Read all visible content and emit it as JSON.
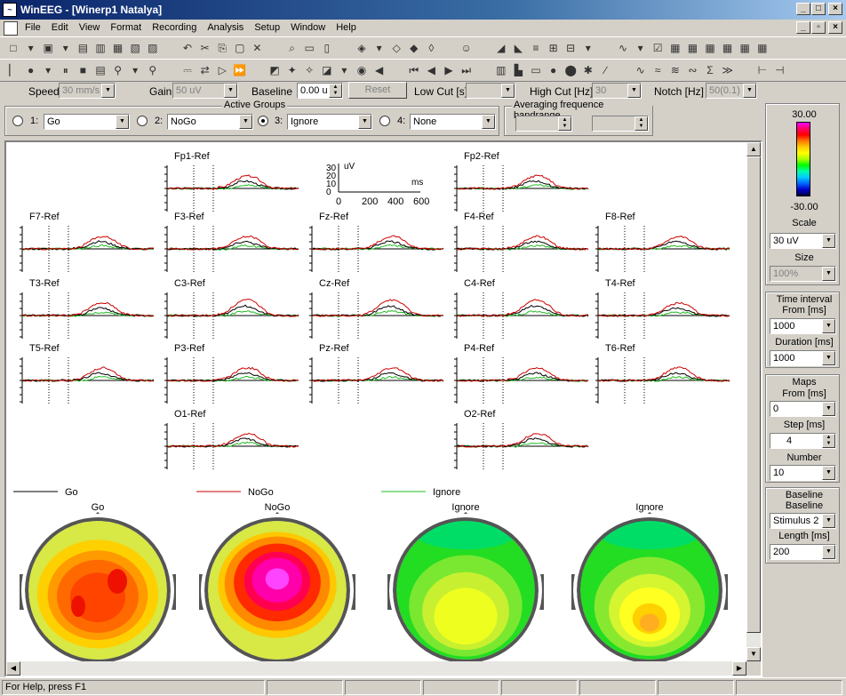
{
  "window": {
    "title": "WinEEG - [Winerp1 Natalya]"
  },
  "menu": [
    "File",
    "Edit",
    "View",
    "Format",
    "Recording",
    "Analysis",
    "Setup",
    "Window",
    "Help"
  ],
  "controls": {
    "speed_label": "Speed",
    "speed_value": "30 mm/s",
    "gain_label": "Gain",
    "gain_value": "50 uV",
    "baseline_label": "Baseline",
    "baseline_value": "0.00 u",
    "reset_label": "Reset",
    "lowcut_label": "Low Cut [s]",
    "lowcut_value": "",
    "highcut_label": "High Cut [Hz]",
    "highcut_value": "30",
    "notch_label": "Notch [Hz]",
    "notch_value": "50(0.1)"
  },
  "active_groups": {
    "title": "Active Groups",
    "groups": [
      {
        "num": "1:",
        "value": "Go",
        "selected": false
      },
      {
        "num": "2:",
        "value": "NoGo",
        "selected": false
      },
      {
        "num": "3:",
        "value": "Ignore",
        "selected": true
      },
      {
        "num": "4:",
        "value": "None",
        "selected": false
      }
    ]
  },
  "averaging": {
    "title": "Averaging frequence bandrange",
    "from": "",
    "to": ""
  },
  "scale_bar": {
    "units": "uV",
    "y_ticks": [
      "30",
      "20",
      "10",
      "0"
    ],
    "x_ticks": [
      "0",
      "200",
      "400",
      "600"
    ],
    "x_units": "ms"
  },
  "channels": [
    "Fp1-Ref",
    "Fp2-Ref",
    "F7-Ref",
    "F3-Ref",
    "Fz-Ref",
    "F4-Ref",
    "F8-Ref",
    "T3-Ref",
    "C3-Ref",
    "Cz-Ref",
    "C4-Ref",
    "T4-Ref",
    "T5-Ref",
    "P3-Ref",
    "Pz-Ref",
    "P4-Ref",
    "T6-Ref",
    "O1-Ref",
    "O2-Ref"
  ],
  "legend": [
    {
      "name": "Go",
      "color": "#000000"
    },
    {
      "name": "NoGo",
      "color": "#cc0000"
    },
    {
      "name": "Ignore",
      "color": "#22bb22"
    }
  ],
  "maps": [
    {
      "title": "Go",
      "profile": "go"
    },
    {
      "title": "NoGo",
      "profile": "nogo"
    },
    {
      "title": "Ignore",
      "profile": "ign1"
    },
    {
      "title": "Ignore",
      "profile": "ign2"
    }
  ],
  "color_scale": {
    "max": "30.00",
    "min": "-30.00"
  },
  "right_panel": {
    "scale_label": "Scale",
    "scale_value": "30 uV",
    "size_label": "Size",
    "size_value": "100%",
    "time_interval_title": "Time interval",
    "from_label": "From [ms]",
    "from_value": "1000",
    "duration_label": "Duration [ms]",
    "duration_value": "1000",
    "maps_title": "Maps",
    "maps_from_label": "From [ms]",
    "maps_from_value": "0",
    "step_label": "Step [ms]",
    "step_value": "4",
    "number_label": "Number",
    "number_value": "10",
    "baseline_title": "Baseline",
    "baseline_label": "Baseline",
    "baseline_value": "Stimulus 2",
    "length_label": "Length [ms]",
    "length_value": "200"
  },
  "status": {
    "text": "For Help, press F1"
  }
}
